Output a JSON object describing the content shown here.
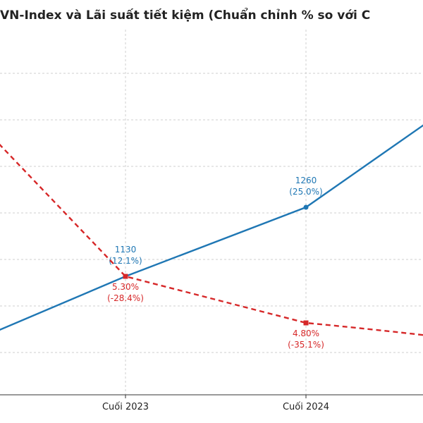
{
  "title": "VN-Index và Lãi suất tiết kiệm (Chuẩn chỉnh % so với C",
  "chart_data": {
    "type": "line",
    "categories": [
      "",
      "Cuối 2023",
      "Cuối 2024",
      ""
    ],
    "series": [
      {
        "key": "vnindex",
        "color": "#1f77b4",
        "style": "solid",
        "values": [
          null,
          12.1,
          25.0,
          null
        ],
        "labels": [
          "",
          "1130\n(12.1%)",
          "1260\n(25.0%)",
          ""
        ]
      },
      {
        "key": "savings",
        "color": "#d62728",
        "style": "dashed",
        "values": [
          null,
          -28.4,
          -35.1,
          null
        ],
        "labels": [
          "",
          "5.30%\n(-28.4%)",
          "4.80%\n(-35.1%)",
          ""
        ]
      }
    ],
    "grid": true
  }
}
